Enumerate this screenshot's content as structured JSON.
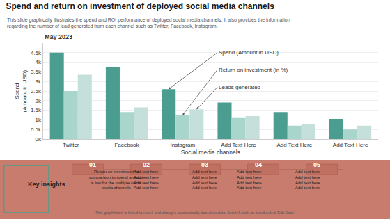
{
  "chart_data": {
    "type": "bar",
    "title": "Spend and return on investment of deployed social media channels",
    "subtitle": "This slide graphically illustrates the spend and ROI performance of deployed social media channels. It also provides the information regarding the number of lead generated from each channel such as Twitter, Facebook, Instagram.",
    "date_label": "May 2023",
    "xlabel": "Social media channels",
    "ylabel": "Spend\n(Amount in USD)",
    "categories": [
      "Twitter",
      "Facebook",
      "Instagram",
      "Add Text Here",
      "Add Text Here",
      "Add Text Here"
    ],
    "series": [
      {
        "name": "Spend (Amount in USD)",
        "color": "#4a9d8f",
        "values": [
          4500,
          3750,
          2600,
          1900,
          1400,
          1050
        ]
      },
      {
        "name": "Return on investment (in %)",
        "color": "#a8d5cc",
        "values": [
          2500,
          1400,
          1250,
          1100,
          700,
          500
        ]
      },
      {
        "name": "Leads generated",
        "color": "#c5e0db",
        "values": [
          3350,
          1650,
          1550,
          1200,
          800,
          700
        ]
      }
    ],
    "ylim": [
      0,
      5000
    ],
    "yticks": [
      {
        "value": 0,
        "label": "0k"
      },
      {
        "value": 500,
        "label": "0.5k"
      },
      {
        "value": 1000,
        "label": "1k"
      },
      {
        "value": 1500,
        "label": "1.5k"
      },
      {
        "value": 2000,
        "label": "2k"
      },
      {
        "value": 2500,
        "label": "2.5k"
      },
      {
        "value": 3000,
        "label": "3k"
      },
      {
        "value": 3500,
        "label": "3.5k"
      },
      {
        "value": 4000,
        "label": "4k"
      },
      {
        "value": 4500,
        "label": "4.5k"
      }
    ],
    "grid": true,
    "key_insights_title": "Key insights",
    "insights": [
      {
        "number": "01",
        "text": "Return on investment in\ncomparison to spend amount\nis low for the multiple social\nmedia channels"
      },
      {
        "number": "02",
        "text": "Add text here\nAdd text here\nAdd text here\nAdd text here"
      },
      {
        "number": "03",
        "text": "Add text here\nAdd text here\nAdd text here\nAdd text here"
      },
      {
        "number": "04",
        "text": "Add text here\nAdd text here\nAdd text here\nAdd text here"
      },
      {
        "number": "05",
        "text": "Add text here\nAdd text here\nAdd text here\nAdd text here"
      }
    ],
    "footer": "This graph/chart is linked to excel, and changes automatically based on data. Just left click on it and select 'Edit Data'."
  }
}
